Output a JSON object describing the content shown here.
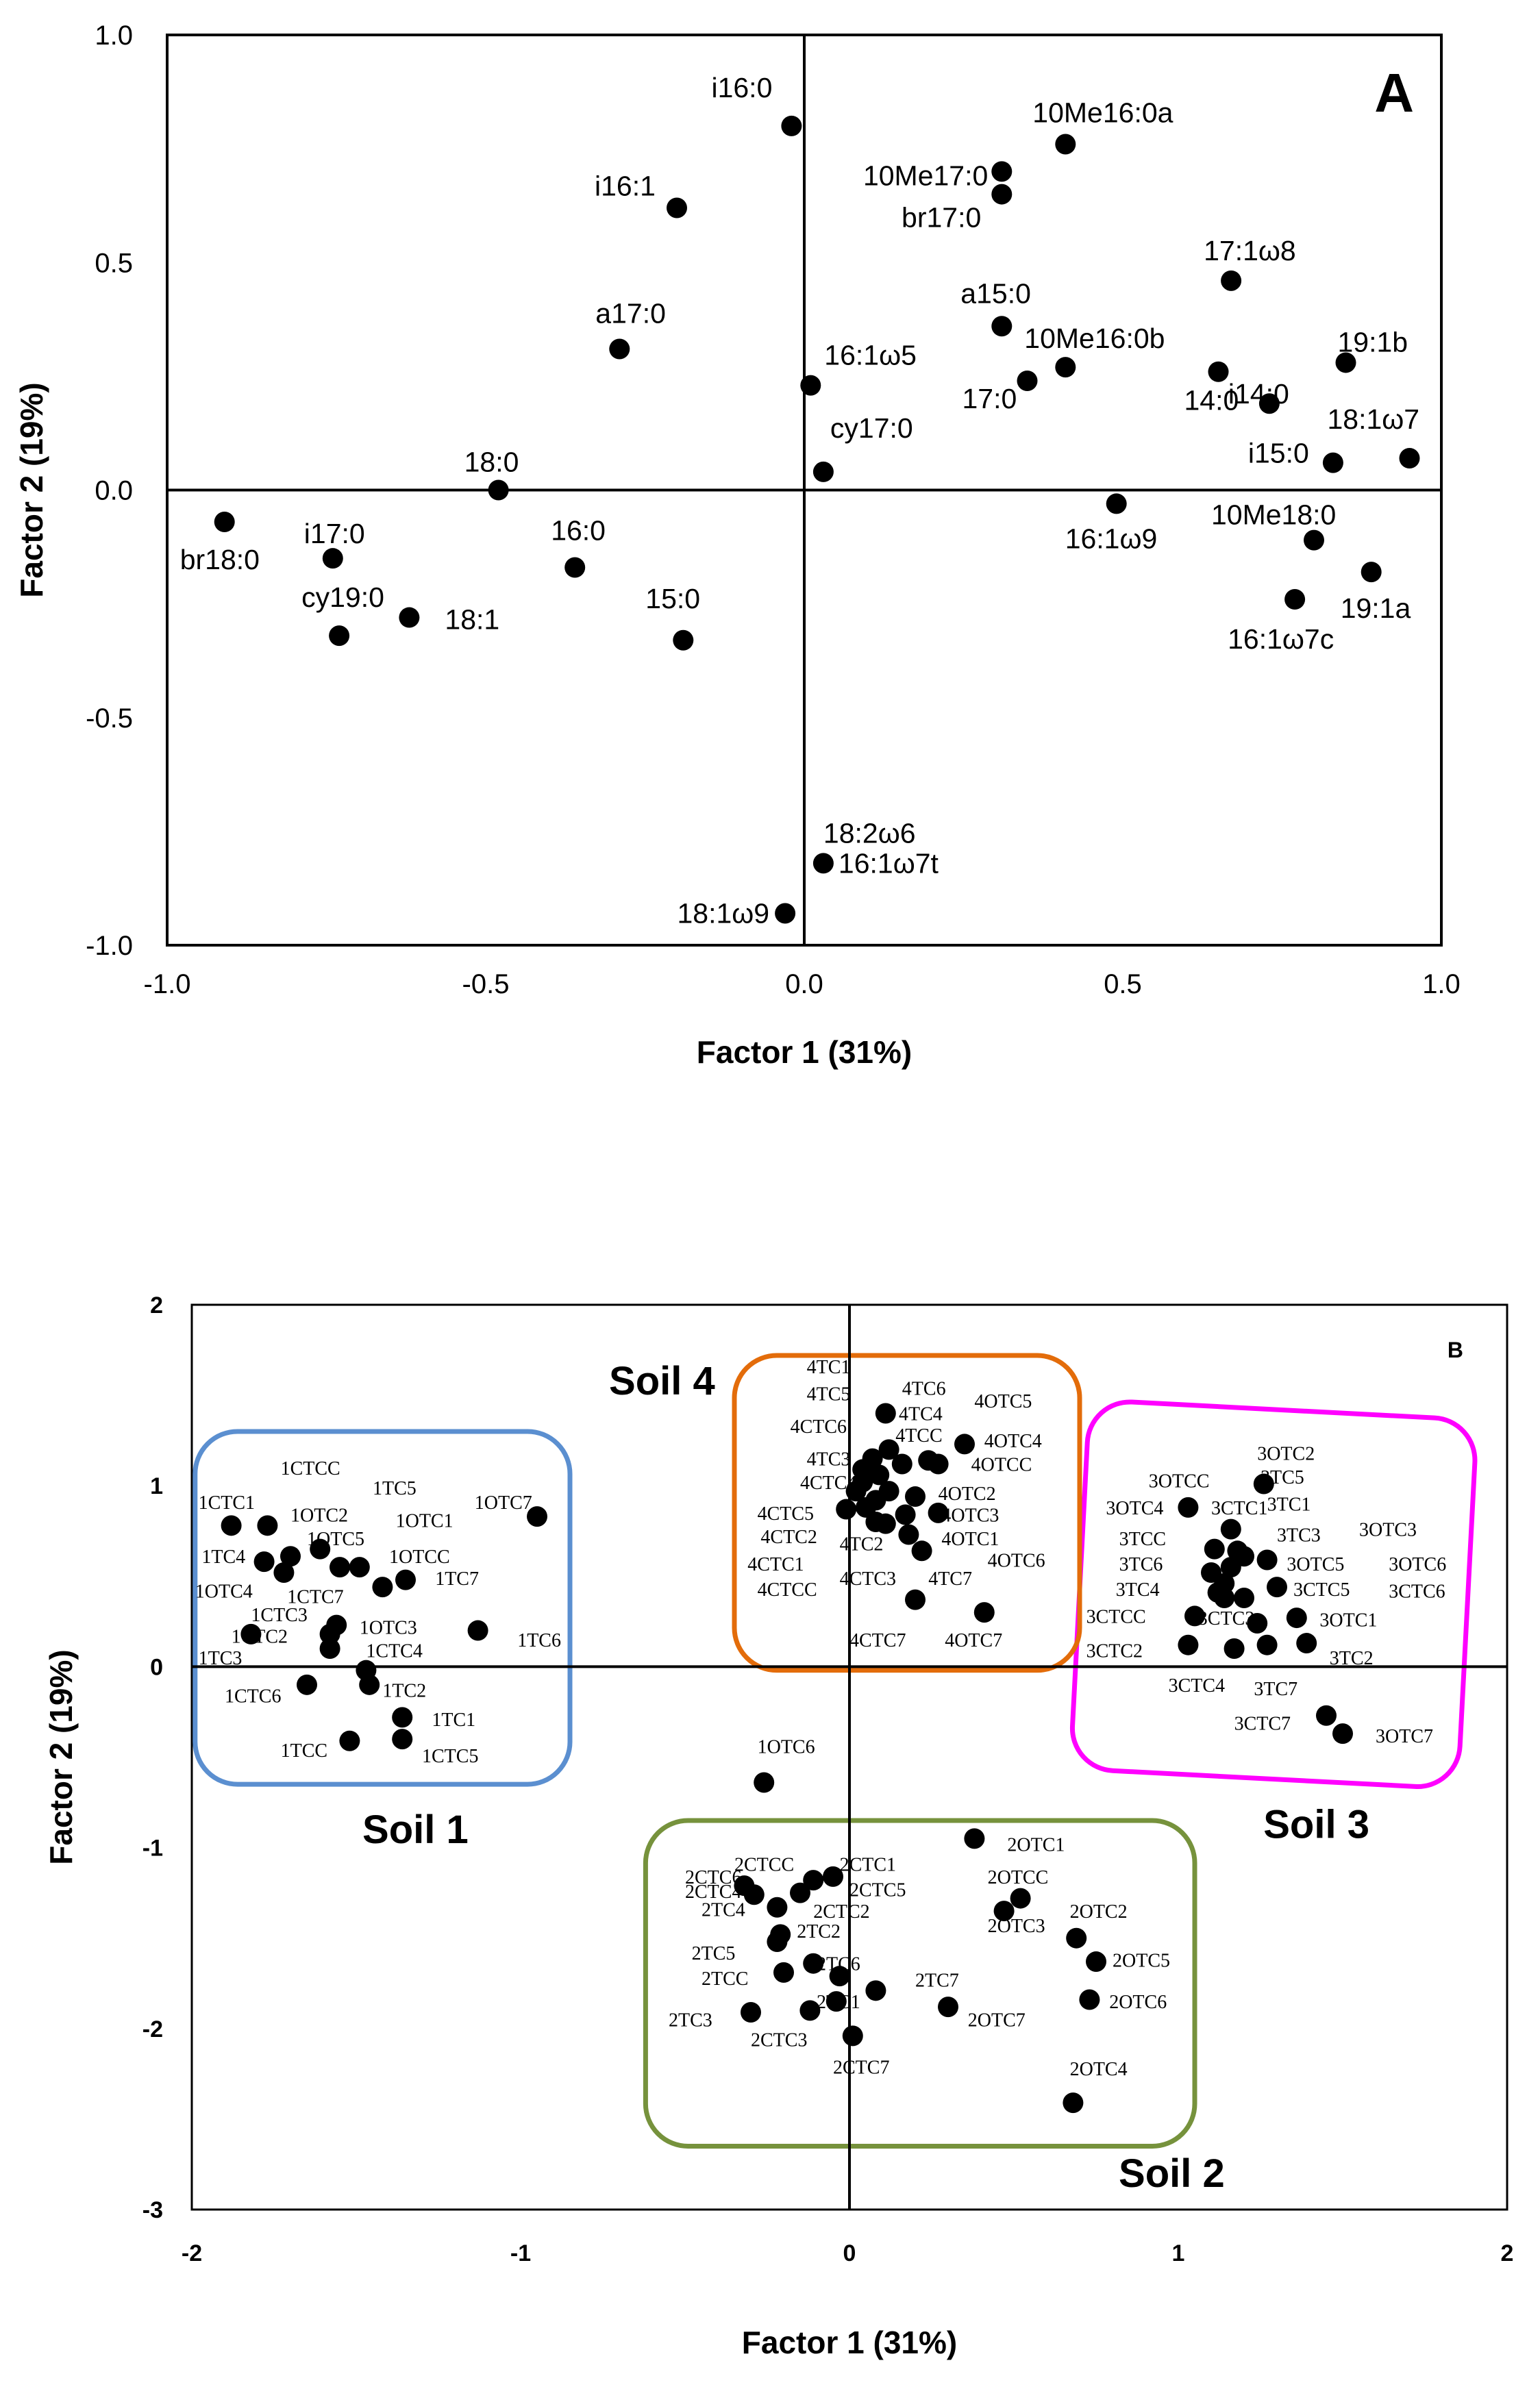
{
  "chart_data": [
    {
      "type": "scatter",
      "panel_label": "A",
      "title": "",
      "xlabel": "Factor 1 (31%)",
      "ylabel": "Factor 2 (19%)",
      "xlim": [
        -1.0,
        1.0
      ],
      "ylim": [
        -1.0,
        1.0
      ],
      "xticks": [
        "-1.0",
        "-0.5",
        "0.0",
        "0.5",
        "1.0"
      ],
      "yticks": [
        "-1.0",
        "-0.5",
        "0.0",
        "0.5",
        "1.0"
      ],
      "grid": false,
      "points": [
        {
          "label": "i16:0",
          "x": -0.02,
          "y": 0.8
        },
        {
          "label": "10Me16:0a",
          "x": 0.41,
          "y": 0.76
        },
        {
          "label": "10Me17:0",
          "x": 0.31,
          "y": 0.7
        },
        {
          "label": "br17:0",
          "x": 0.31,
          "y": 0.65
        },
        {
          "label": "i16:1",
          "x": -0.2,
          "y": 0.62
        },
        {
          "label": "17:1ω8",
          "x": 0.67,
          "y": 0.46
        },
        {
          "label": "a15:0",
          "x": 0.31,
          "y": 0.36
        },
        {
          "label": "a17:0",
          "x": -0.29,
          "y": 0.31
        },
        {
          "label": "19:1b",
          "x": 0.85,
          "y": 0.28
        },
        {
          "label": "10Me16:0b",
          "x": 0.41,
          "y": 0.27
        },
        {
          "label": "14:0",
          "x": 0.65,
          "y": 0.26
        },
        {
          "label": "17:0",
          "x": 0.35,
          "y": 0.24
        },
        {
          "label": "16:1ω5",
          "x": 0.01,
          "y": 0.23
        },
        {
          "label": "i14:0",
          "x": 0.73,
          "y": 0.19
        },
        {
          "label": "18:1ω7",
          "x": 0.95,
          "y": 0.07
        },
        {
          "label": "i15:0",
          "x": 0.83,
          "y": 0.06
        },
        {
          "label": "cy17:0",
          "x": 0.03,
          "y": 0.04
        },
        {
          "label": "18:0",
          "x": -0.48,
          "y": 0.0
        },
        {
          "label": "16:1ω9",
          "x": 0.49,
          "y": -0.03
        },
        {
          "label": "br18:0",
          "x": -0.91,
          "y": -0.07
        },
        {
          "label": "10Me18:0",
          "x": 0.8,
          "y": -0.11
        },
        {
          "label": "i17:0",
          "x": -0.74,
          "y": -0.15
        },
        {
          "label": "16:0",
          "x": -0.36,
          "y": -0.17
        },
        {
          "label": "19:1a",
          "x": 0.89,
          "y": -0.18
        },
        {
          "label": "16:1ω7c",
          "x": 0.77,
          "y": -0.24
        },
        {
          "label": "18:1",
          "x": -0.62,
          "y": -0.28
        },
        {
          "label": "cy19:0",
          "x": -0.73,
          "y": -0.32
        },
        {
          "label": "15:0",
          "x": -0.19,
          "y": -0.33
        },
        {
          "label": "18:2ω6",
          "x": 0.03,
          "y": -0.82
        },
        {
          "label": "16:1ω7t",
          "x": 0.03,
          "y": -0.82
        },
        {
          "label": "18:1ω9",
          "x": -0.03,
          "y": -0.93
        }
      ]
    },
    {
      "type": "scatter",
      "panel_label": "B",
      "title": "",
      "xlabel": "Factor 1 (31%)",
      "ylabel": "Factor 2 (19%)",
      "xlim": [
        -2,
        2
      ],
      "ylim": [
        -3,
        2
      ],
      "xticks": [
        "-2",
        "-1",
        "0",
        "1",
        "2"
      ],
      "yticks": [
        "-3",
        "-2",
        "-1",
        "0",
        "1",
        "2"
      ],
      "grid": false,
      "groups": [
        {
          "name": "Soil 1",
          "color": "#5B8FD0",
          "xmin": -1.99,
          "xmax": -0.85,
          "ymin": -0.65,
          "ymax": 1.3
        },
        {
          "name": "Soil 2",
          "color": "#76923C",
          "xmin": -0.62,
          "xmax": 1.05,
          "ymin": -2.65,
          "ymax": -0.85
        },
        {
          "name": "Soil 3",
          "color": "#FF00FF",
          "xmin": 0.7,
          "xmax": 1.88,
          "ymin": -0.62,
          "ymax": 1.42
        },
        {
          "name": "Soil 4",
          "color": "#E36C0A",
          "xmin": -0.35,
          "xmax": 0.7,
          "ymin": -0.02,
          "ymax": 1.72
        }
      ],
      "points": [
        {
          "x": -1.88,
          "y": 0.78
        },
        {
          "x": -1.77,
          "y": 0.78
        },
        {
          "x": -1.7,
          "y": 0.61
        },
        {
          "x": -1.78,
          "y": 0.58
        },
        {
          "x": -1.72,
          "y": 0.52
        },
        {
          "x": -1.61,
          "y": 0.65
        },
        {
          "x": -1.55,
          "y": 0.55
        },
        {
          "x": -1.49,
          "y": 0.55
        },
        {
          "x": -1.35,
          "y": 0.48
        },
        {
          "x": -1.42,
          "y": 0.44
        },
        {
          "x": -1.82,
          "y": 0.18
        },
        {
          "x": -1.56,
          "y": 0.23
        },
        {
          "x": -1.58,
          "y": 0.18
        },
        {
          "x": -1.58,
          "y": 0.1
        },
        {
          "x": -1.13,
          "y": 0.2
        },
        {
          "x": -0.95,
          "y": 0.83
        },
        {
          "x": -1.65,
          "y": -0.1
        },
        {
          "x": -1.47,
          "y": -0.02
        },
        {
          "x": -1.46,
          "y": -0.1
        },
        {
          "x": -1.36,
          "y": -0.28
        },
        {
          "x": -1.52,
          "y": -0.41
        },
        {
          "x": -1.36,
          "y": -0.4
        },
        {
          "x": 0.11,
          "y": 1.4
        },
        {
          "x": 0.35,
          "y": 1.23
        },
        {
          "x": 0.12,
          "y": 1.2
        },
        {
          "x": 0.07,
          "y": 1.15
        },
        {
          "x": 0.16,
          "y": 1.12
        },
        {
          "x": 0.24,
          "y": 1.14
        },
        {
          "x": 0.27,
          "y": 1.12
        },
        {
          "x": 0.04,
          "y": 1.09
        },
        {
          "x": 0.09,
          "y": 1.06
        },
        {
          "x": 0.04,
          "y": 1.02
        },
        {
          "x": 0.02,
          "y": 0.97
        },
        {
          "x": 0.12,
          "y": 0.97
        },
        {
          "x": 0.2,
          "y": 0.94
        },
        {
          "x": 0.08,
          "y": 0.92
        },
        {
          "x": 0.05,
          "y": 0.88
        },
        {
          "x": -0.01,
          "y": 0.87
        },
        {
          "x": 0.17,
          "y": 0.84
        },
        {
          "x": 0.27,
          "y": 0.85
        },
        {
          "x": 0.08,
          "y": 0.8
        },
        {
          "x": 0.11,
          "y": 0.79
        },
        {
          "x": 0.18,
          "y": 0.73
        },
        {
          "x": 0.22,
          "y": 0.64
        },
        {
          "x": 0.2,
          "y": 0.37
        },
        {
          "x": 0.41,
          "y": 0.3
        },
        {
          "x": 1.26,
          "y": 1.01
        },
        {
          "x": 1.03,
          "y": 0.88
        },
        {
          "x": 1.16,
          "y": 0.76
        },
        {
          "x": 1.11,
          "y": 0.65
        },
        {
          "x": 1.18,
          "y": 0.64
        },
        {
          "x": 1.2,
          "y": 0.61
        },
        {
          "x": 1.27,
          "y": 0.59
        },
        {
          "x": 1.16,
          "y": 0.55
        },
        {
          "x": 1.1,
          "y": 0.52
        },
        {
          "x": 1.14,
          "y": 0.46
        },
        {
          "x": 1.3,
          "y": 0.44
        },
        {
          "x": 1.12,
          "y": 0.41
        },
        {
          "x": 1.14,
          "y": 0.38
        },
        {
          "x": 1.2,
          "y": 0.38
        },
        {
          "x": 1.05,
          "y": 0.28
        },
        {
          "x": 1.24,
          "y": 0.24
        },
        {
          "x": 1.36,
          "y": 0.27
        },
        {
          "x": 1.03,
          "y": 0.12
        },
        {
          "x": 1.17,
          "y": 0.1
        },
        {
          "x": 1.27,
          "y": 0.12
        },
        {
          "x": 1.39,
          "y": 0.13
        },
        {
          "x": 1.45,
          "y": -0.27
        },
        {
          "x": 1.5,
          "y": -0.37
        },
        {
          "x": -0.26,
          "y": -0.64
        },
        {
          "x": 0.38,
          "y": -0.95
        },
        {
          "x": -0.32,
          "y": -1.21
        },
        {
          "x": -0.29,
          "y": -1.26
        },
        {
          "x": -0.22,
          "y": -1.33
        },
        {
          "x": -0.15,
          "y": -1.25
        },
        {
          "x": -0.11,
          "y": -1.18
        },
        {
          "x": -0.05,
          "y": -1.16
        },
        {
          "x": 0.52,
          "y": -1.28
        },
        {
          "x": 0.47,
          "y": -1.35
        },
        {
          "x": -0.21,
          "y": -1.48
        },
        {
          "x": -0.22,
          "y": -1.52
        },
        {
          "x": -0.11,
          "y": -1.64
        },
        {
          "x": -0.2,
          "y": -1.69
        },
        {
          "x": -0.03,
          "y": -1.71
        },
        {
          "x": 0.08,
          "y": -1.79
        },
        {
          "x": -0.04,
          "y": -1.85
        },
        {
          "x": 0.3,
          "y": -1.88
        },
        {
          "x": -0.3,
          "y": -1.91
        },
        {
          "x": -0.12,
          "y": -1.9
        },
        {
          "x": 0.01,
          "y": -2.04
        },
        {
          "x": 0.69,
          "y": -1.5
        },
        {
          "x": 0.75,
          "y": -1.63
        },
        {
          "x": 0.73,
          "y": -1.84
        },
        {
          "x": 0.68,
          "y": -2.41
        }
      ],
      "point_labels": [
        {
          "label": "1CTCC",
          "x": -1.73,
          "y": 1.1
        },
        {
          "label": "1TC5",
          "x": -1.45,
          "y": 0.99
        },
        {
          "label": "1CTC1",
          "x": -1.98,
          "y": 0.91
        },
        {
          "label": "1OTC7",
          "x": -1.14,
          "y": 0.91
        },
        {
          "label": "1OTC2",
          "x": -1.7,
          "y": 0.84
        },
        {
          "label": "1OTC1",
          "x": -1.38,
          "y": 0.81
        },
        {
          "label": "1OTC5",
          "x": -1.65,
          "y": 0.71
        },
        {
          "label": "1TC4",
          "x": -1.97,
          "y": 0.61
        },
        {
          "label": "1OTCC",
          "x": -1.4,
          "y": 0.61
        },
        {
          "label": "1TC7",
          "x": -1.26,
          "y": 0.49
        },
        {
          "label": "1OTC4",
          "x": -1.99,
          "y": 0.42
        },
        {
          "label": "1CTC7",
          "x": -1.71,
          "y": 0.39
        },
        {
          "label": "1CTC3",
          "x": -1.82,
          "y": 0.29
        },
        {
          "label": "1OTC3",
          "x": -1.49,
          "y": 0.22
        },
        {
          "label": "1CTC2",
          "x": -1.88,
          "y": 0.17
        },
        {
          "label": "1TC6",
          "x": -1.01,
          "y": 0.15
        },
        {
          "label": "1CTC4",
          "x": -1.47,
          "y": 0.09
        },
        {
          "label": "1TC3",
          "x": -1.98,
          "y": 0.05
        },
        {
          "label": "1CTC6",
          "x": -1.9,
          "y": -0.16
        },
        {
          "label": "1TC2",
          "x": -1.42,
          "y": -0.13
        },
        {
          "label": "1TC1",
          "x": -1.27,
          "y": -0.29
        },
        {
          "label": "1TCC",
          "x": -1.73,
          "y": -0.46
        },
        {
          "label": "1CTC5",
          "x": -1.3,
          "y": -0.49
        },
        {
          "label": "4TC1",
          "x": -0.13,
          "y": 1.66
        },
        {
          "label": "4TC6",
          "x": 0.16,
          "y": 1.54
        },
        {
          "label": "4TC5",
          "x": -0.13,
          "y": 1.51
        },
        {
          "label": "4OTC5",
          "x": 0.38,
          "y": 1.47
        },
        {
          "label": "4TC4",
          "x": 0.15,
          "y": 1.4
        },
        {
          "label": "4CTC6",
          "x": -0.18,
          "y": 1.33
        },
        {
          "label": "4TCC",
          "x": 0.14,
          "y": 1.28
        },
        {
          "label": "4OTC4",
          "x": 0.41,
          "y": 1.25
        },
        {
          "label": "4TC3",
          "x": -0.13,
          "y": 1.15
        },
        {
          "label": "4OTCC",
          "x": 0.37,
          "y": 1.12
        },
        {
          "label": "4CTC4",
          "x": -0.15,
          "y": 1.02
        },
        {
          "label": "4OTC2",
          "x": 0.27,
          "y": 0.96
        },
        {
          "label": "4CTC5",
          "x": -0.28,
          "y": 0.85
        },
        {
          "label": "4OTC3",
          "x": 0.28,
          "y": 0.84
        },
        {
          "label": "4OTC1",
          "x": 0.28,
          "y": 0.71
        },
        {
          "label": "4TC2",
          "x": -0.03,
          "y": 0.68
        },
        {
          "label": "4CTC2",
          "x": -0.27,
          "y": 0.72
        },
        {
          "label": "4OTC6",
          "x": 0.42,
          "y": 0.59
        },
        {
          "label": "4CTC1",
          "x": -0.31,
          "y": 0.57
        },
        {
          "label": "4CTC3",
          "x": -0.03,
          "y": 0.49
        },
        {
          "label": "4TC7",
          "x": 0.24,
          "y": 0.49
        },
        {
          "label": "4CTCC",
          "x": -0.28,
          "y": 0.43
        },
        {
          "label": "4CTC7",
          "x": 0.0,
          "y": 0.15
        },
        {
          "label": "4OTC7",
          "x": 0.29,
          "y": 0.15
        },
        {
          "label": "3OTC2",
          "x": 1.24,
          "y": 1.18
        },
        {
          "label": "3OTCC",
          "x": 0.91,
          "y": 1.03
        },
        {
          "label": "3TC5",
          "x": 1.25,
          "y": 1.05
        },
        {
          "label": "3TC1",
          "x": 1.27,
          "y": 0.9
        },
        {
          "label": "3OTC4",
          "x": 0.78,
          "y": 0.88
        },
        {
          "label": "3CTC1",
          "x": 1.1,
          "y": 0.88
        },
        {
          "label": "3OTC3",
          "x": 1.55,
          "y": 0.76
        },
        {
          "label": "3TCC",
          "x": 0.82,
          "y": 0.71
        },
        {
          "label": "3TC3",
          "x": 1.3,
          "y": 0.73
        },
        {
          "label": "3OTC5",
          "x": 1.33,
          "y": 0.57
        },
        {
          "label": "3OTC6",
          "x": 1.64,
          "y": 0.57
        },
        {
          "label": "3TC6",
          "x": 0.82,
          "y": 0.57
        },
        {
          "label": "3TC4",
          "x": 0.81,
          "y": 0.43
        },
        {
          "label": "3CTC5",
          "x": 1.35,
          "y": 0.43
        },
        {
          "label": "3CTC6",
          "x": 1.64,
          "y": 0.42
        },
        {
          "label": "3CTCC",
          "x": 0.72,
          "y": 0.28
        },
        {
          "label": "3CTC3",
          "x": 1.06,
          "y": 0.27
        },
        {
          "label": "3OTC1",
          "x": 1.43,
          "y": 0.26
        },
        {
          "label": "3CTC2",
          "x": 0.72,
          "y": 0.09
        },
        {
          "label": "3TC2",
          "x": 1.46,
          "y": 0.05
        },
        {
          "label": "3CTC4",
          "x": 0.97,
          "y": -0.1
        },
        {
          "label": "3TC7",
          "x": 1.23,
          "y": -0.12
        },
        {
          "label": "3CTC7",
          "x": 1.17,
          "y": -0.31
        },
        {
          "label": "3OTC7",
          "x": 1.6,
          "y": -0.38
        },
        {
          "label": "1OTC6",
          "x": -0.28,
          "y": -0.44
        },
        {
          "label": "2OTC1",
          "x": 0.48,
          "y": -0.98
        },
        {
          "label": "2CTCC",
          "x": -0.35,
          "y": -1.09
        },
        {
          "label": "2CTC1",
          "x": -0.03,
          "y": -1.09
        },
        {
          "label": "2CTC6",
          "x": -0.5,
          "y": -1.16
        },
        {
          "label": "2OTCC",
          "x": 0.42,
          "y": -1.16
        },
        {
          "label": "2CTC4",
          "x": -0.5,
          "y": -1.24
        },
        {
          "label": "2CTC5",
          "x": 0.0,
          "y": -1.23
        },
        {
          "label": "2TC4",
          "x": -0.45,
          "y": -1.34
        },
        {
          "label": "2CTC2",
          "x": -0.11,
          "y": -1.35
        },
        {
          "label": "2OTC3",
          "x": 0.42,
          "y": -1.43
        },
        {
          "label": "2OTC2",
          "x": 0.67,
          "y": -1.35
        },
        {
          "label": "2TC2",
          "x": -0.16,
          "y": -1.46
        },
        {
          "label": "2TC5",
          "x": -0.48,
          "y": -1.58
        },
        {
          "label": "2OTC5",
          "x": 0.8,
          "y": -1.62
        },
        {
          "label": "2TC6",
          "x": -0.1,
          "y": -1.64
        },
        {
          "label": "2TCC",
          "x": -0.45,
          "y": -1.72
        },
        {
          "label": "2TC7",
          "x": 0.2,
          "y": -1.73
        },
        {
          "label": "2TC1",
          "x": -0.1,
          "y": -1.85
        },
        {
          "label": "2OTC6",
          "x": 0.79,
          "y": -1.85
        },
        {
          "label": "2TC3",
          "x": -0.55,
          "y": -1.95
        },
        {
          "label": "2OTC7",
          "x": 0.36,
          "y": -1.95
        },
        {
          "label": "2CTC3",
          "x": -0.3,
          "y": -2.06
        },
        {
          "label": "2CTC7",
          "x": -0.05,
          "y": -2.21
        },
        {
          "label": "2OTC4",
          "x": 0.67,
          "y": -2.22
        }
      ]
    }
  ]
}
